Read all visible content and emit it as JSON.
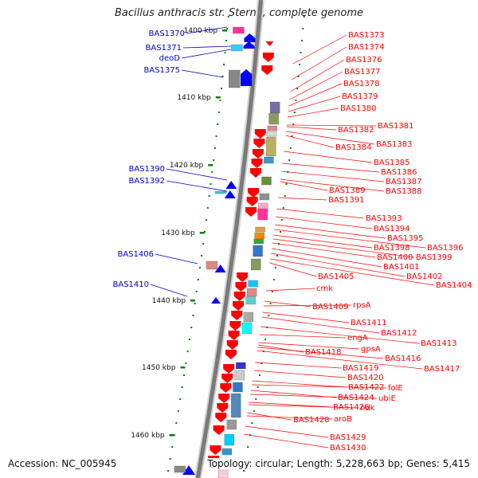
{
  "title": "Bacillus anthracis str. Sterne, complete genome",
  "footer": {
    "accession": "Accession: NC_005945",
    "topology": "Topology: circular; Length: 5,228,663 bp; Genes: 5,415"
  },
  "colors": {
    "forward_label": "#0000cc",
    "reverse_label": "#ff0000",
    "backbone": "#7a7a7a",
    "tick": "#008000",
    "forward_gene": "#0000ff",
    "reverse_gene": "#ff0000"
  },
  "ticks": [
    "1400 kbp",
    "1410 kbp",
    "1420 kbp",
    "1430 kbp",
    "1440 kbp",
    "1450 kbp",
    "1460 kbp"
  ],
  "forward_genes": [
    "BAS1370",
    "BAS1371",
    "deoD",
    "BAS1375",
    "BAS1390",
    "BAS1392",
    "BAS1406",
    "BAS1410"
  ],
  "reverse_genes": [
    "BAS1373",
    "BAS1374",
    "BAS1376",
    "BAS1377",
    "BAS1378",
    "BAS1379",
    "BAS1380",
    "BAS1381",
    "BAS1382",
    "BAS1383",
    "BAS1384",
    "BAS1385",
    "BAS1386",
    "BAS1387",
    "BAS1388",
    "BAS1389",
    "BAS1391",
    "BAS1393",
    "BAS1394",
    "BAS1395",
    "BAS1396",
    "BAS1398",
    "BAS1399",
    "BAS1400",
    "BAS1401",
    "BAS1402",
    "BAS1404",
    "BAS1405",
    "cmk",
    "BAS1409",
    "rpsA",
    "BAS1411",
    "BAS1412",
    "BAS1413",
    "engA",
    "gpsA",
    "BAS1416",
    "BAS1417",
    "BAS1418",
    "BAS1419",
    "BAS1420",
    "BAS1422",
    "folE",
    "BAS1424",
    "ubiE",
    "BAS1426",
    "ndk",
    "BAS1428",
    "aroB",
    "BAS1429",
    "BAS1430"
  ]
}
